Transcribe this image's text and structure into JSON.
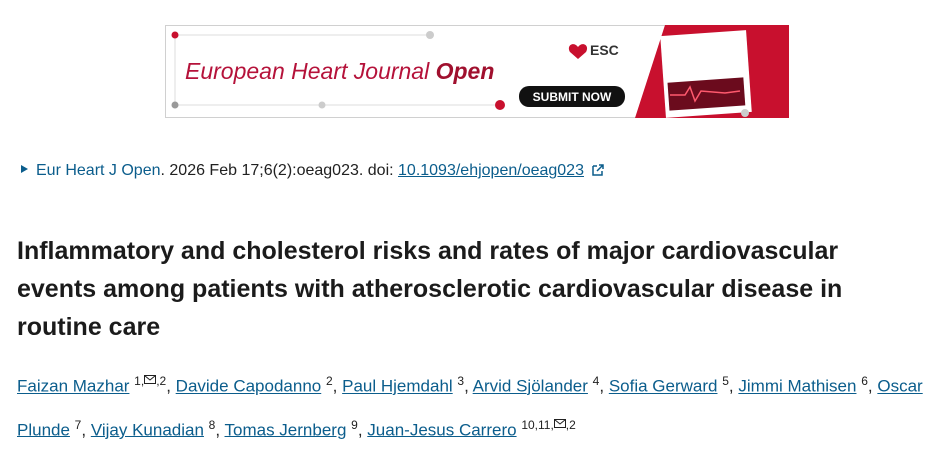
{
  "banner": {
    "journal_name": "European Heart Journal",
    "journal_open": "Open",
    "society": "ESC",
    "button": "SUBMIT NOW"
  },
  "citation": {
    "journal": "Eur Heart J Open",
    "details": ". 2026 Feb 17;6(2):oeag023. doi: ",
    "doi": "10.1093/ehjopen/oeag023"
  },
  "title": "Inflammatory and cholesterol risks and rates of major cardiovascular events among patients with atherosclerotic cardiovascular disease in routine care",
  "separator": ",",
  "authors": [
    {
      "name": "Faizan Mazhar",
      "sup": [
        "1,",
        ",2"
      ]
    },
    {
      "name": "Davide Capodanno",
      "sup": [
        "2"
      ]
    },
    {
      "name": "Paul Hjemdahl",
      "sup": [
        "3"
      ]
    },
    {
      "name": "Arvid Sjölander",
      "sup": [
        "4"
      ]
    },
    {
      "name": "Sofia Gerward",
      "sup": [
        "5"
      ]
    },
    {
      "name": "Jimmi Mathisen",
      "sup": [
        "6"
      ]
    },
    {
      "name": "Oscar Plunde",
      "sup": [
        "7"
      ]
    },
    {
      "name": "Vijay Kunadian",
      "sup": [
        "8"
      ]
    },
    {
      "name": "Tomas Jernberg",
      "sup": [
        "9"
      ]
    },
    {
      "name": "Juan-Jesus Carrero",
      "sup": [
        "10,11,",
        ",2"
      ]
    }
  ]
}
